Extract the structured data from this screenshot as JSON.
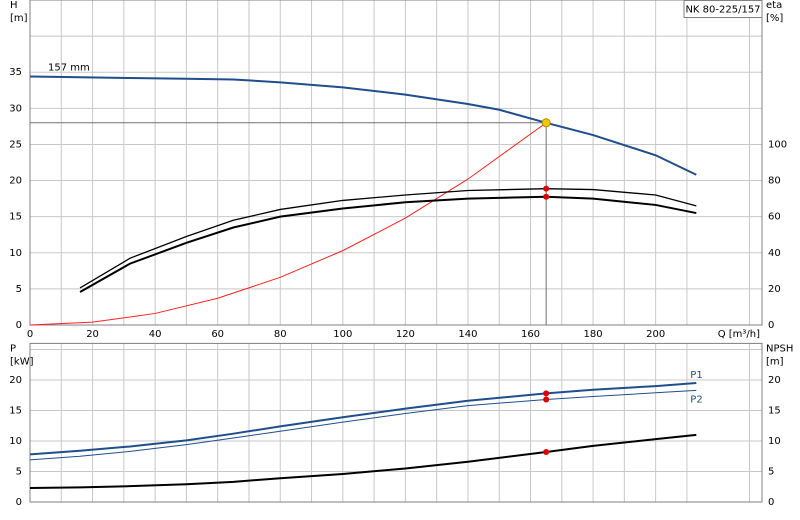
{
  "chart_data": [
    {
      "type": "line",
      "title": "NK 80-225/157",
      "annotation": "157 mm",
      "x_label": "Q [m³/h]",
      "y_label": [
        "H",
        "[m]"
      ],
      "y2_label": [
        "eta",
        "[%]"
      ],
      "xlim": [
        0,
        234
      ],
      "xticks": [
        0,
        20,
        40,
        60,
        80,
        100,
        120,
        140,
        160,
        180,
        200
      ],
      "xminorticks": [
        10,
        30,
        50,
        70,
        90,
        110,
        130,
        150,
        170,
        190,
        210,
        230
      ],
      "ylim": [
        0,
        45
      ],
      "yticks": [
        0,
        5,
        10,
        15,
        20,
        25,
        30,
        35
      ],
      "yminorticks": [
        40
      ],
      "y2lim": [
        0,
        180
      ],
      "y2ticks": [
        0,
        20,
        40,
        60,
        80,
        100
      ],
      "grid": true,
      "crosshair": true,
      "series": [
        {
          "color": "#1f4e8c",
          "width": 2,
          "x": [
            0,
            16,
            32,
            50,
            65,
            80,
            100,
            120,
            140,
            150,
            165,
            180,
            200,
            213
          ],
          "values": [
            34.4,
            34.3,
            34.2,
            34.1,
            34.0,
            33.6,
            32.9,
            31.9,
            30.6,
            29.8,
            28,
            26.3,
            23.5,
            20.8
          ]
        },
        {
          "color": "#ff2020",
          "width": 1,
          "x": [
            0,
            20,
            40,
            60,
            80,
            100,
            120,
            140,
            165
          ],
          "values": [
            0,
            0.4,
            1.6,
            3.7,
            6.6,
            10.3,
            14.8,
            20.2,
            28
          ]
        },
        {
          "color": "#000000",
          "width": 1.3,
          "axis": "y2",
          "x": [
            16,
            32,
            50,
            65,
            80,
            100,
            120,
            140,
            165,
            180,
            200,
            213
          ],
          "values": [
            20.5,
            37,
            49,
            58,
            64,
            69,
            72,
            74.5,
            75.5,
            75,
            72,
            66
          ]
        },
        {
          "color": "#000000",
          "width": 2,
          "axis": "y2",
          "x": [
            16,
            32,
            50,
            65,
            80,
            100,
            120,
            140,
            165,
            180,
            200,
            213
          ],
          "values": [
            18.3,
            34,
            45.5,
            54,
            60,
            64.5,
            68,
            70,
            71,
            70,
            66.5,
            62
          ]
        }
      ],
      "points": [
        {
          "x": 165,
          "y": 28,
          "color": "#f7c600"
        },
        {
          "x": 165,
          "y": 75.5,
          "axis": "y2",
          "color": "#e00000"
        },
        {
          "x": 165,
          "y": 71,
          "axis": "y2",
          "color": "#e00000"
        }
      ]
    },
    {
      "type": "line",
      "y_label": [
        "P",
        "[kW]"
      ],
      "y2_label": [
        "NPSH",
        "[m]"
      ],
      "xlim": [
        0,
        234
      ],
      "xticks": [
        0,
        20,
        40,
        60,
        80,
        100,
        120,
        140,
        160,
        180,
        200
      ],
      "xtick_labels": false,
      "xminorticks": [
        10,
        30,
        50,
        70,
        90,
        110,
        130,
        150,
        170,
        190,
        210,
        230
      ],
      "ylim": [
        0,
        26
      ],
      "yticks": [
        0,
        5,
        10,
        15,
        20
      ],
      "yminorticks": [
        25
      ],
      "y2lim": [
        0,
        26
      ],
      "y2ticks": [
        0,
        5,
        10,
        15,
        20
      ],
      "grid": true,
      "series": [
        {
          "name": "P1",
          "color": "#1f4e8c",
          "width": 2,
          "x": [
            0,
            16,
            32,
            50,
            65,
            80,
            100,
            120,
            140,
            165,
            180,
            200,
            213
          ],
          "values": [
            7.8,
            8.4,
            9.1,
            10.1,
            11.2,
            12.4,
            13.9,
            15.3,
            16.6,
            17.8,
            18.4,
            19.0,
            19.5
          ]
        },
        {
          "name": "P2",
          "color": "#1f4e8c",
          "width": 1,
          "x": [
            0,
            16,
            32,
            50,
            65,
            80,
            100,
            120,
            140,
            165,
            180,
            200,
            213
          ],
          "values": [
            6.9,
            7.5,
            8.3,
            9.4,
            10.5,
            11.6,
            13.1,
            14.5,
            15.8,
            16.8,
            17.3,
            17.9,
            18.3
          ]
        },
        {
          "color": "#000000",
          "width": 2,
          "axis": "y2",
          "x": [
            0,
            16,
            32,
            50,
            65,
            80,
            100,
            120,
            140,
            165,
            180,
            200,
            213
          ],
          "values": [
            2.3,
            2.4,
            2.6,
            2.9,
            3.3,
            3.9,
            4.6,
            5.5,
            6.6,
            8.2,
            9.2,
            10.3,
            11.0
          ]
        }
      ],
      "points": [
        {
          "x": 165,
          "y": 17.8,
          "color": "#e00000"
        },
        {
          "x": 165,
          "y": 16.8,
          "color": "#e00000"
        },
        {
          "x": 165,
          "y": 8.2,
          "axis": "y2",
          "color": "#e00000"
        }
      ]
    }
  ]
}
